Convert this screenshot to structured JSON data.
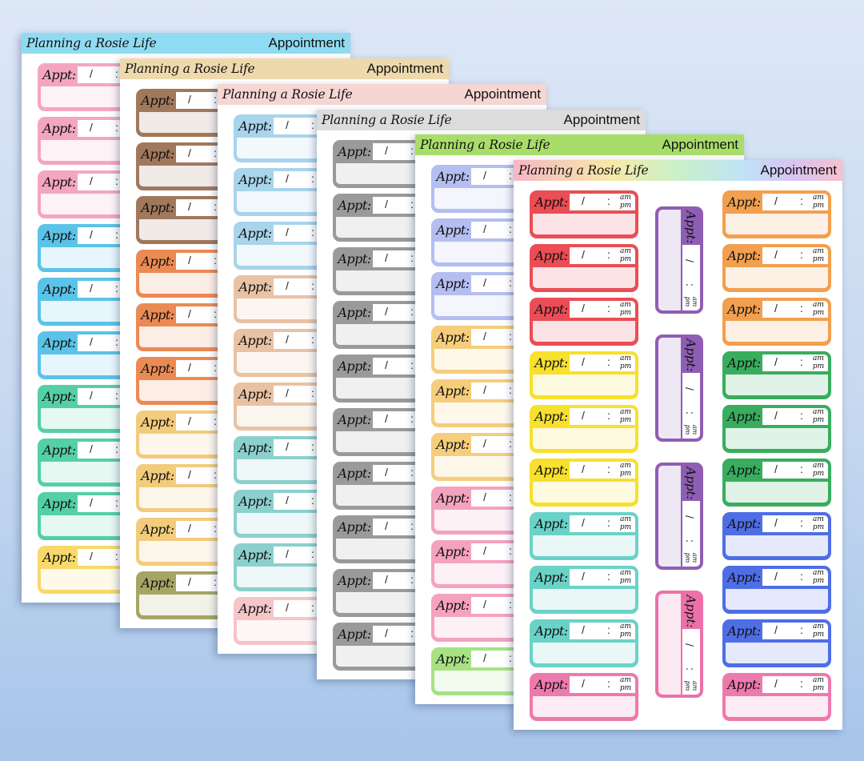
{
  "brand": "Planning a Rosie Life",
  "title": "Appointment",
  "sticker_text": {
    "label": "Appt:",
    "slash": "/",
    "colon": ":",
    "am": "am",
    "pm": "pm"
  },
  "sheets": [
    {
      "header_color": "#8fdcf2",
      "columns": [
        {
          "colors": [
            "#f4a6c1",
            "#f4a6c1",
            "#f4a6c1",
            "#5bc3e8",
            "#5bc3e8",
            "#5bc3e8",
            "#55cfa6",
            "#55cfa6",
            "#55cfa6",
            "#f8d96a"
          ]
        }
      ]
    },
    {
      "header_color": "#eed9ac",
      "columns": [
        {
          "colors": [
            "#a0785c",
            "#a0785c",
            "#a0785c",
            "#ec8a54",
            "#ec8a54",
            "#ec8a54",
            "#f2cc7c",
            "#f2cc7c",
            "#f2cc7c",
            "#a7a565"
          ]
        }
      ]
    },
    {
      "header_color": "#f5d6d3",
      "columns": [
        {
          "colors": [
            "#a8d4ec",
            "#a8d4ec",
            "#a8d4ec",
            "#e9c2a4",
            "#e9c2a4",
            "#e9c2a4",
            "#8cd0cd",
            "#8cd0cd",
            "#8cd0cd",
            "#f5c5c8"
          ]
        }
      ]
    },
    {
      "header_color": "#dcdcdc",
      "columns": [
        {
          "colors": [
            "#9a9a9a",
            "#9a9a9a",
            "#9a9a9a",
            "#9a9a9a",
            "#9a9a9a",
            "#9a9a9a",
            "#9a9a9a",
            "#9a9a9a",
            "#9a9a9a",
            "#9a9a9a"
          ]
        }
      ]
    },
    {
      "header_color": "#a8dd6a",
      "columns": [
        {
          "colors": [
            "#b4bef0",
            "#b4bef0",
            "#b4bef0",
            "#f5cd7c",
            "#f5cd7c",
            "#f5cd7c",
            "#f4a3bf",
            "#f4a3bf",
            "#f4a3bf",
            "#a7e184"
          ]
        }
      ]
    },
    {
      "header_color": "#rainbow",
      "columns": [
        {
          "colors": [
            "#ea4d55",
            "#ea4d55",
            "#ea4d55",
            "#f7e02e",
            "#f7e02e",
            "#f7e02e",
            "#6bd2c8",
            "#6bd2c8",
            "#6bd2c8",
            "#ee79ad"
          ]
        },
        {
          "colors": [
            "#f29f4f",
            "#f29f4f",
            "#f29f4f",
            "#39ad5e",
            "#39ad5e",
            "#39ad5e",
            "#4f6ee6",
            "#4f6ee6",
            "#4f6ee6",
            "#ee79ad"
          ]
        }
      ],
      "vertical_colors": [
        "#8e5eb4",
        "#8e5eb4",
        "#8e5eb4",
        "#ec71a9"
      ]
    }
  ]
}
